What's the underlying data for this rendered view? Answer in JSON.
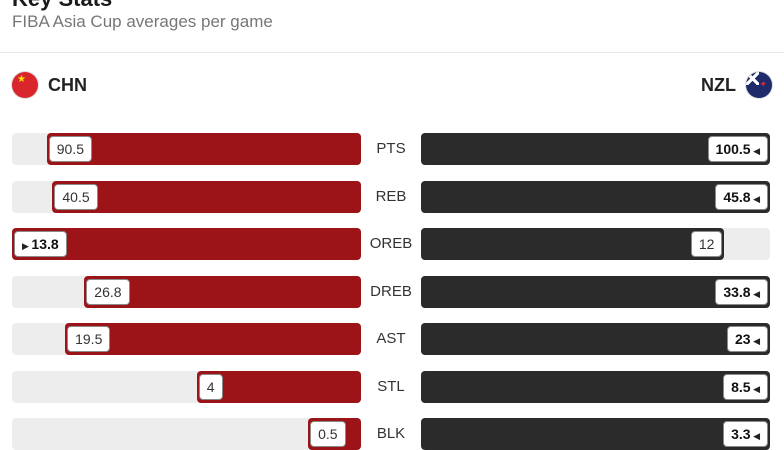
{
  "header": {
    "title": "Key Stats",
    "subtitle": "FIBA Asia Cup averages per game"
  },
  "teams": {
    "left": {
      "code": "CHN",
      "flag": "china-flag",
      "bar_color": "#9c1418"
    },
    "right": {
      "code": "NZL",
      "flag": "new-zealand-flag",
      "bar_color": "#2b2b2b"
    }
  },
  "stats": [
    {
      "label": "PTS",
      "chn": "90.5",
      "nzl": "100.5",
      "winner": "nzl"
    },
    {
      "label": "REB",
      "chn": "40.5",
      "nzl": "45.8",
      "winner": "nzl"
    },
    {
      "label": "OREB",
      "chn": "13.8",
      "nzl": "12",
      "winner": "chn"
    },
    {
      "label": "DREB",
      "chn": "26.8",
      "nzl": "33.8",
      "winner": "nzl"
    },
    {
      "label": "AST",
      "chn": "19.5",
      "nzl": "23",
      "winner": "nzl"
    },
    {
      "label": "STL",
      "chn": "4",
      "nzl": "8.5",
      "winner": "nzl"
    },
    {
      "label": "BLK",
      "chn": "0.5",
      "nzl": "3.3",
      "winner": "nzl"
    }
  ]
}
